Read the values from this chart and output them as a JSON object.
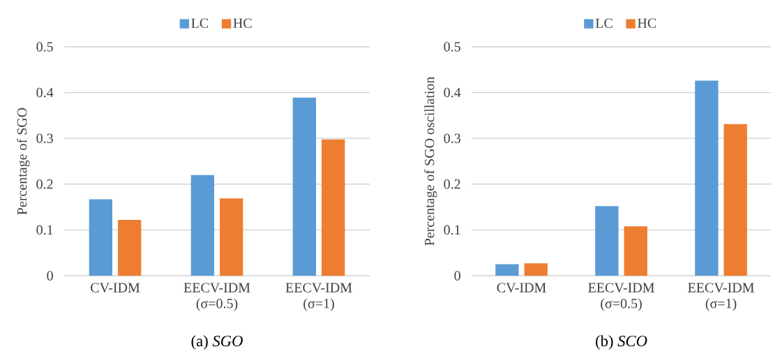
{
  "chart_data": [
    {
      "type": "bar",
      "title": "(a) *SGO*",
      "ylabel": "Percentage of SGO",
      "categories": [
        "CV-IDM",
        "EECV-IDM (σ=0.5)",
        "EECV-IDM (σ=1)"
      ],
      "series": [
        {
          "name": "LC",
          "color": "#5b9bd5",
          "values": [
            0.167,
            0.22,
            0.389
          ]
        },
        {
          "name": "HC",
          "color": "#ed7d31",
          "values": [
            0.122,
            0.169,
            0.298
          ]
        }
      ],
      "ylim": [
        0,
        0.5
      ],
      "yticks": [
        0,
        0.1,
        0.2,
        0.3,
        0.4,
        0.5
      ],
      "grid": "y",
      "legend": "top"
    },
    {
      "type": "bar",
      "title": "(b) *SCO*",
      "ylabel": "Percentage of SGO oscillation",
      "categories": [
        "CV-IDM",
        "EECV-IDM (σ=0.5)",
        "EECV-IDM (σ=1)"
      ],
      "series": [
        {
          "name": "LC",
          "color": "#5b9bd5",
          "values": [
            0.025,
            0.152,
            0.426
          ]
        },
        {
          "name": "HC",
          "color": "#ed7d31",
          "values": [
            0.027,
            0.108,
            0.331
          ]
        }
      ],
      "ylim": [
        0,
        0.5
      ],
      "yticks": [
        0,
        0.1,
        0.2,
        0.3,
        0.4,
        0.5
      ],
      "grid": "y",
      "legend": "top"
    }
  ]
}
